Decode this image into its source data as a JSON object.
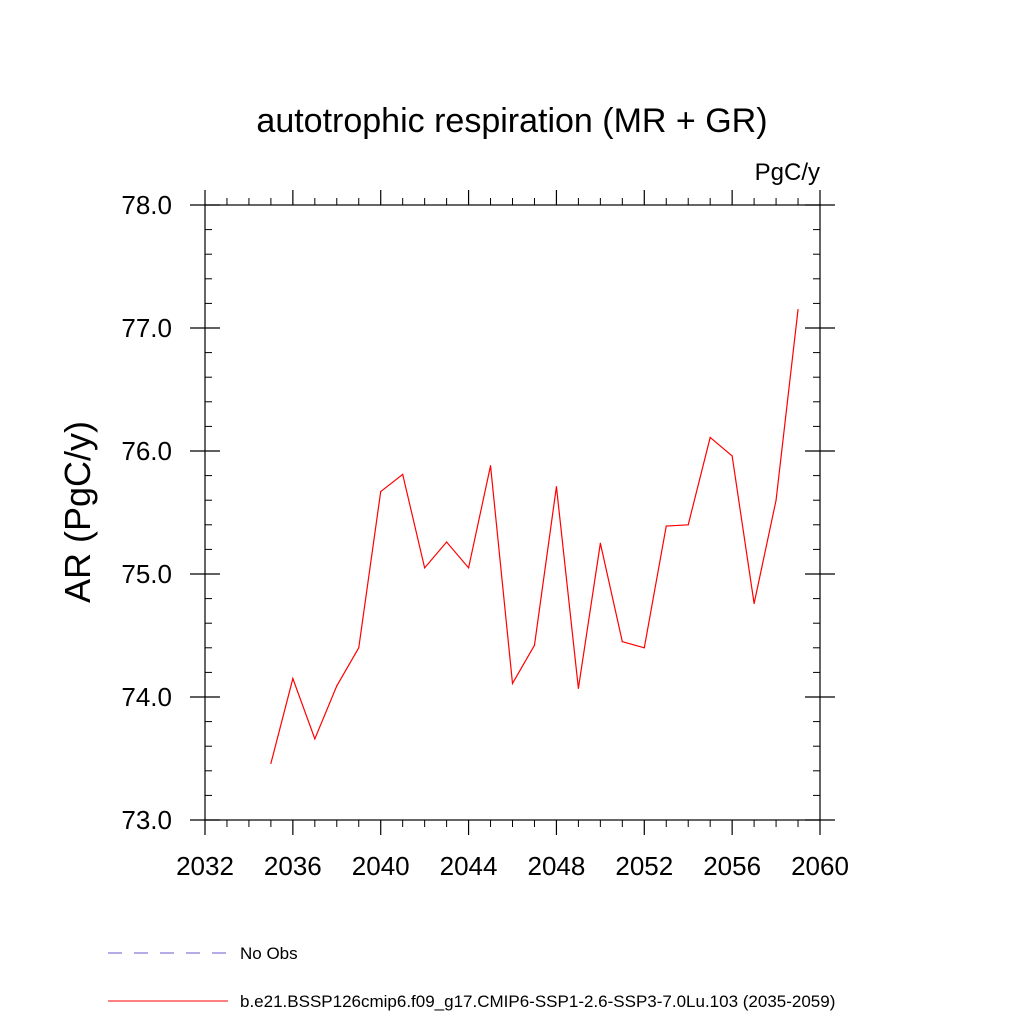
{
  "chart_data": {
    "type": "line",
    "title": "autotrophic respiration (MR + GR)",
    "units_label": "PgC/y",
    "ylabel": "AR  (PgC/y)",
    "xlabel": "",
    "xlim": [
      2032,
      2060
    ],
    "ylim": [
      73.0,
      78.0
    ],
    "x_ticks": [
      2032,
      2036,
      2040,
      2044,
      2048,
      2052,
      2056,
      2060
    ],
    "x_tick_labels": [
      "2032",
      "2036",
      "2040",
      "2044",
      "2048",
      "2052",
      "2056",
      "2060"
    ],
    "x_minor_step": 1,
    "y_ticks": [
      73.0,
      74.0,
      75.0,
      76.0,
      77.0,
      78.0
    ],
    "y_tick_labels": [
      "73.0",
      "74.0",
      "75.0",
      "76.0",
      "77.0",
      "78.0"
    ],
    "y_minor_step": 0.2,
    "grid": false,
    "series": [
      {
        "name": "b.e21.BSSP126cmip6.f09_g17.CMIP6-SSP1-2.6-SSP3-7.0Lu.103 (2035-2059)",
        "color": "#ff0000",
        "x": [
          2035,
          2036,
          2037,
          2038,
          2039,
          2040,
          2041,
          2042,
          2043,
          2044,
          2045,
          2046,
          2047,
          2048,
          2049,
          2050,
          2051,
          2052,
          2053,
          2054,
          2055,
          2056,
          2057,
          2058,
          2059
        ],
        "values": [
          73.46,
          74.15,
          73.66,
          74.09,
          74.4,
          75.67,
          75.81,
          75.05,
          75.26,
          75.05,
          75.88,
          74.11,
          74.42,
          75.71,
          74.07,
          75.25,
          74.45,
          74.4,
          75.39,
          75.4,
          76.11,
          75.96,
          74.76,
          75.6,
          77.15
        ]
      }
    ],
    "legend": {
      "position": "bottom-left",
      "entries": [
        {
          "label": "No Obs",
          "color": "#6a5acd",
          "style": "dashed"
        },
        {
          "label": "b.e21.BSSP126cmip6.f09_g17.CMIP6-SSP1-2.6-SSP3-7.0Lu.103 (2035-2059)",
          "color": "#ff0000",
          "style": "solid"
        }
      ]
    }
  }
}
